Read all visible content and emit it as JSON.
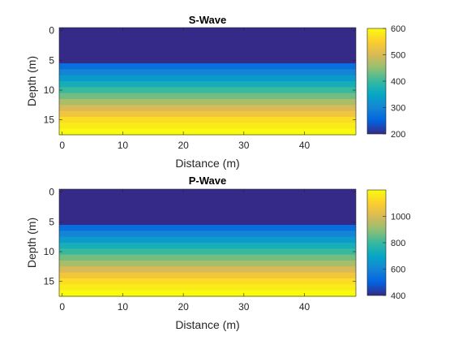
{
  "chart_data": [
    {
      "type": "heatmap",
      "title": "S-Wave",
      "xlabel": "Distance (m)",
      "ylabel": "Depth (m)",
      "xlim": [
        -0.5,
        48.5
      ],
      "ylim": [
        -0.5,
        17.5
      ],
      "y_reversed": true,
      "xticks": [
        0,
        10,
        20,
        30,
        40
      ],
      "yticks": [
        0,
        5,
        10,
        15
      ],
      "colorbar": {
        "clim": [
          200,
          600
        ],
        "ticks": [
          200,
          300,
          400,
          500,
          600
        ],
        "colormap": "parula"
      },
      "depth_profile": {
        "depth": [
          0,
          1,
          2,
          3,
          4,
          5,
          6,
          7,
          8,
          9,
          10,
          11,
          12,
          13,
          14,
          15,
          16,
          17
        ],
        "value": [
          200,
          200,
          200,
          200,
          200,
          200,
          267,
          300,
          333,
          367,
          400,
          433,
          467,
          500,
          533,
          567,
          583,
          600
        ]
      },
      "uniform_along_x": true
    },
    {
      "type": "heatmap",
      "title": "P-Wave",
      "xlabel": "Distance (m)",
      "ylabel": "Depth (m)",
      "xlim": [
        -0.5,
        48.5
      ],
      "ylim": [
        -0.5,
        17.5
      ],
      "y_reversed": true,
      "xticks": [
        0,
        10,
        20,
        30,
        40
      ],
      "yticks": [
        0,
        5,
        10,
        15
      ],
      "colorbar": {
        "clim": [
          400,
          1200
        ],
        "ticks": [
          400,
          600,
          800,
          1000
        ],
        "colormap": "parula"
      },
      "depth_profile": {
        "depth": [
          0,
          1,
          2,
          3,
          4,
          5,
          6,
          7,
          8,
          9,
          10,
          11,
          12,
          13,
          14,
          15,
          16,
          17
        ],
        "value": [
          400,
          400,
          400,
          400,
          400,
          400,
          533,
          600,
          667,
          733,
          800,
          867,
          933,
          1000,
          1067,
          1133,
          1167,
          1200
        ]
      },
      "uniform_along_x": true
    }
  ],
  "colors": {
    "parula": [
      "#352a87",
      "#0363e1",
      "#1485d4",
      "#06a7c6",
      "#38b99e",
      "#92bf73",
      "#d9ba56",
      "#fcce2e",
      "#f9fb0e"
    ],
    "axes_text": "#262626"
  }
}
